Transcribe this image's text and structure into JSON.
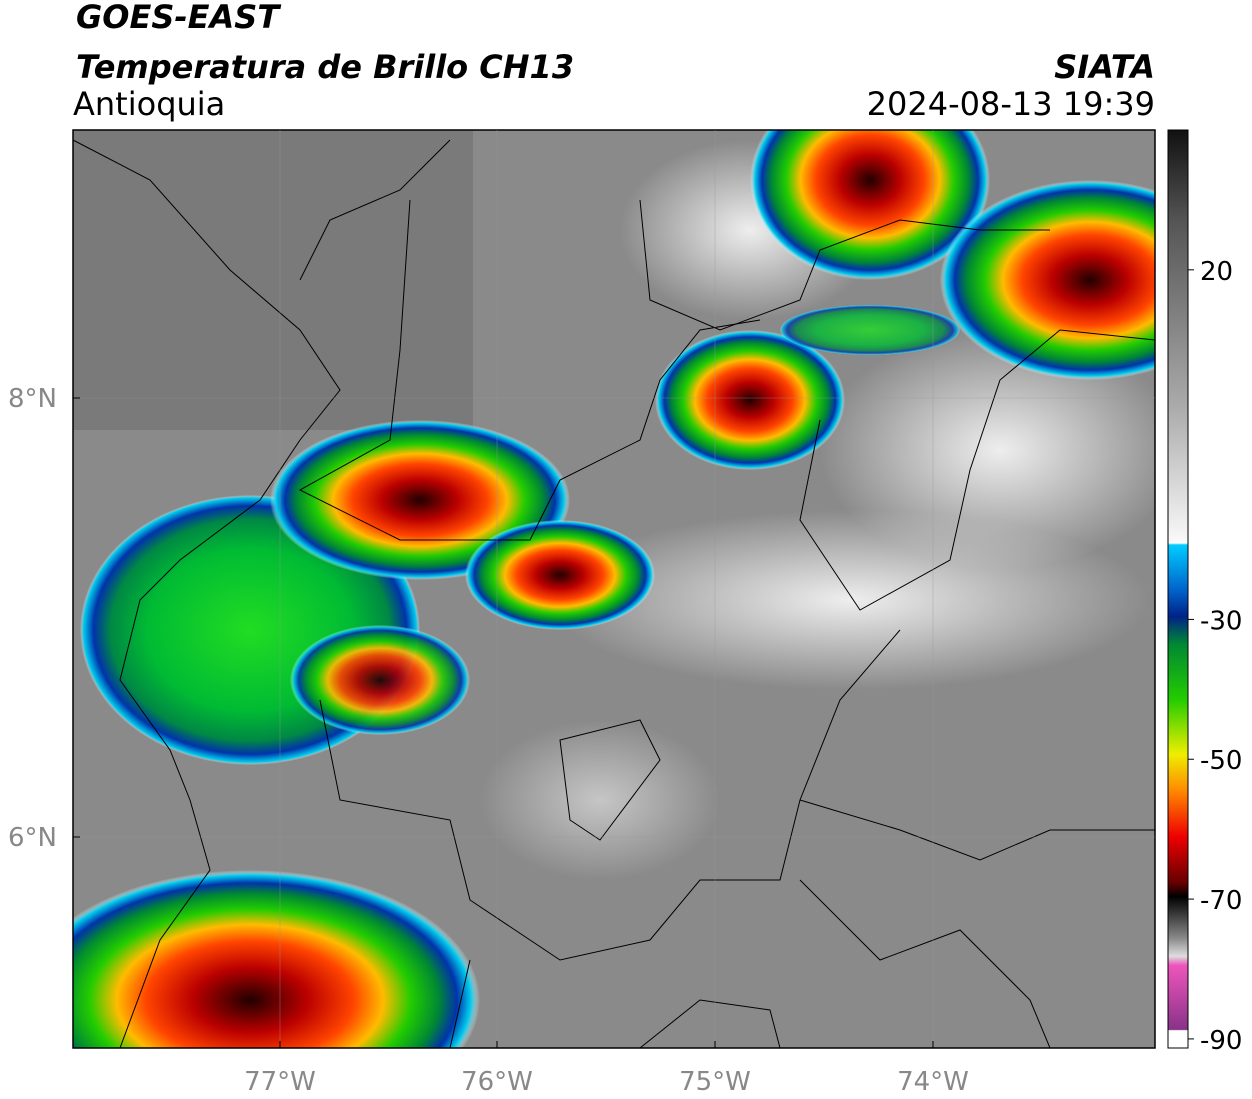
{
  "header": {
    "title": "GOES-EAST",
    "subtitle": "Temperatura de Brillo CH13",
    "region": "Antioquia",
    "source": "SIATA",
    "datetime": "2024-08-13 19:39"
  },
  "map": {
    "lat_ticks": [
      "8°N",
      "6°N"
    ],
    "lon_ticks": [
      "77°W",
      "76°W",
      "75°W",
      "74°W"
    ]
  },
  "colorbar": {
    "ticks": [
      20,
      -30,
      -50,
      -70,
      -90
    ],
    "lim": [
      -91.3,
      40
    ]
  }
}
